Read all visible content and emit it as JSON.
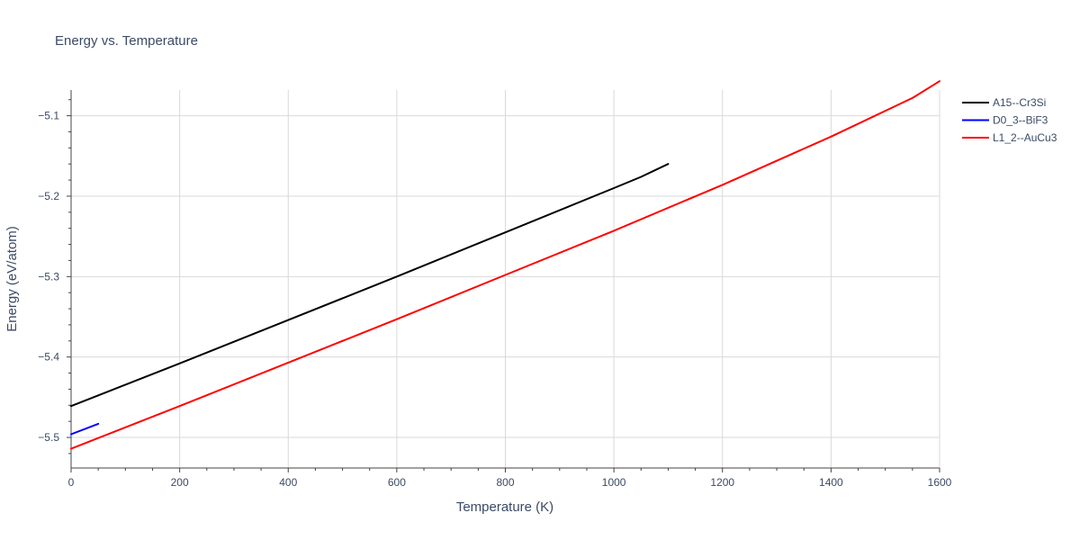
{
  "chart_data": {
    "type": "line",
    "title": "Energy vs. Temperature",
    "xlabel": "Temperature (K)",
    "ylabel": "Energy (eV/atom)",
    "xlim": [
      0,
      1600
    ],
    "ylim": [
      -5.538,
      -5.068
    ],
    "x_ticks": [
      0,
      200,
      400,
      600,
      800,
      1000,
      1200,
      1400,
      1600
    ],
    "y_ticks": [
      -5.5,
      -5.4,
      -5.3,
      -5.2,
      -5.1
    ],
    "y_tick_labels": [
      "−5.5",
      "−5.4",
      "−5.3",
      "−5.2",
      "−5.1"
    ],
    "grid": true,
    "legend_position": "top-right outside",
    "series": [
      {
        "name": "A15--Cr3Si",
        "color": "#000000",
        "points": [
          [
            0,
            -5.461
          ],
          [
            200,
            -5.408
          ],
          [
            400,
            -5.354
          ],
          [
            600,
            -5.3
          ],
          [
            800,
            -5.245
          ],
          [
            1000,
            -5.19
          ],
          [
            1050,
            -5.176
          ],
          [
            1100,
            -5.16
          ]
        ]
      },
      {
        "name": "D0_3--BiF3",
        "color": "#0000ff",
        "points": [
          [
            0,
            -5.496
          ],
          [
            50,
            -5.483
          ]
        ]
      },
      {
        "name": "L1_2--AuCu3",
        "color": "#ff0000",
        "points": [
          [
            0,
            -5.514
          ],
          [
            200,
            -5.461
          ],
          [
            400,
            -5.407
          ],
          [
            600,
            -5.353
          ],
          [
            800,
            -5.298
          ],
          [
            1000,
            -5.243
          ],
          [
            1200,
            -5.186
          ],
          [
            1400,
            -5.126
          ],
          [
            1550,
            -5.078
          ],
          [
            1600,
            -5.057
          ]
        ]
      }
    ]
  }
}
